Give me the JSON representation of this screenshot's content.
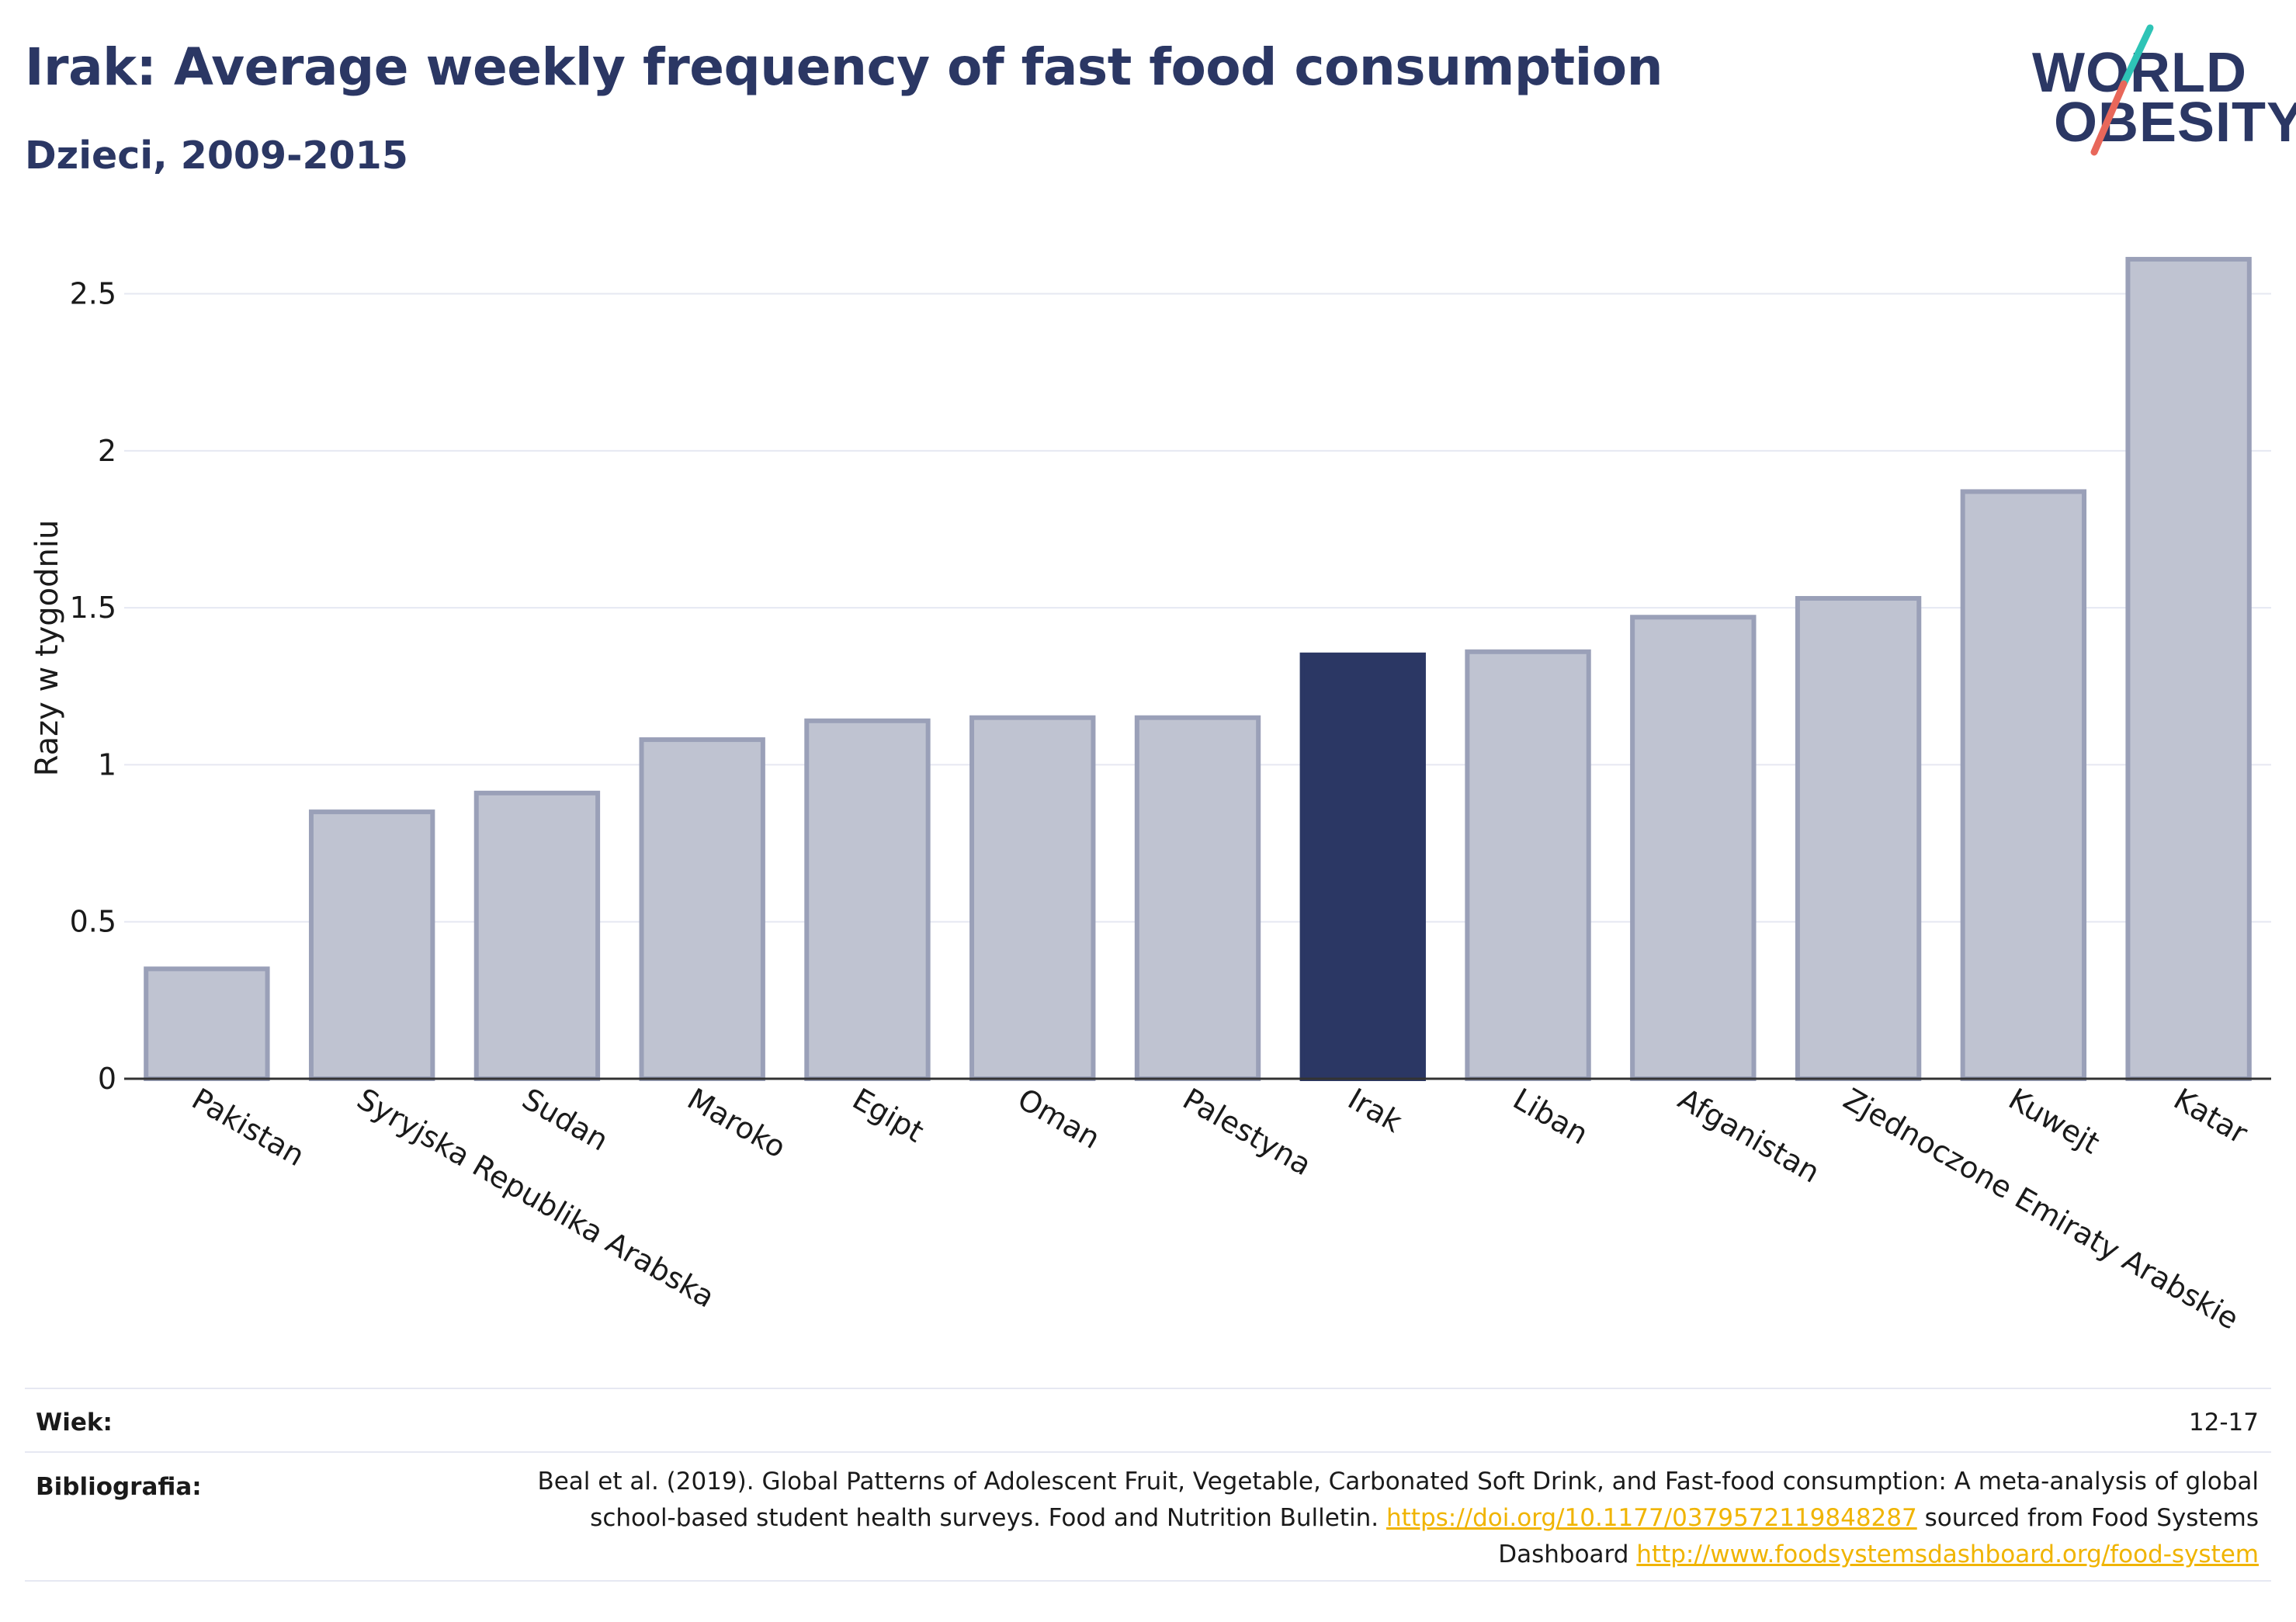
{
  "header": {
    "title": "Irak: Average weekly frequency of fast food consumption",
    "subtitle": "Dzieci, 2009-2015"
  },
  "logo": {
    "line1": "WORLD",
    "line2": "OBESITY",
    "slash_colors": [
      "#2ec4b6",
      "#e8675a"
    ]
  },
  "colors": {
    "bar_default": "#bfc3d1",
    "bar_border": "#9aa0b8",
    "bar_highlight": "#2b3764",
    "grid": "#e6e8f2",
    "link": "#f0b400",
    "title": "#2b3764"
  },
  "chart_data": {
    "type": "bar",
    "title": "Irak: Average weekly frequency of fast food consumption",
    "subtitle": "Dzieci, 2009-2015",
    "xlabel": "",
    "ylabel": "Razy w tygodniu",
    "ylim": [
      0,
      2.62
    ],
    "yticks": [
      0,
      0.5,
      1,
      1.5,
      2,
      2.5
    ],
    "ytick_labels": [
      "0",
      "0.5",
      "1",
      "1.5",
      "2",
      "2.5"
    ],
    "grid": true,
    "categories": [
      "Pakistan",
      "Syryjska Republika Arabska",
      "Sudan",
      "Maroko",
      "Egipt",
      "Oman",
      "Palestyna",
      "Irak",
      "Liban",
      "Afganistan",
      "Zjednoczone Emiraty Arabskie",
      "Kuwejt",
      "Katar"
    ],
    "values": [
      0.35,
      0.85,
      0.91,
      1.08,
      1.14,
      1.15,
      1.15,
      1.35,
      1.36,
      1.47,
      1.53,
      1.87,
      2.61
    ],
    "highlight": "Irak"
  },
  "footer": {
    "age_label": "Wiek:",
    "age_value": "12-17",
    "biblio_label": "Bibliografia:",
    "biblio_text1": "Beal et al. (2019). Global Patterns of Adolescent Fruit, Vegetable, Carbonated Soft Drink, and Fast-food consumption: A meta-analysis of global school-based student health surveys. Food and Nutrition Bulletin. ",
    "biblio_link1": "https://doi.org/10.1177/0379572119848287",
    "biblio_text2": " sourced from Food Systems Dashboard ",
    "biblio_link2": "http://www.foodsystemsdashboard.org/food-system"
  }
}
